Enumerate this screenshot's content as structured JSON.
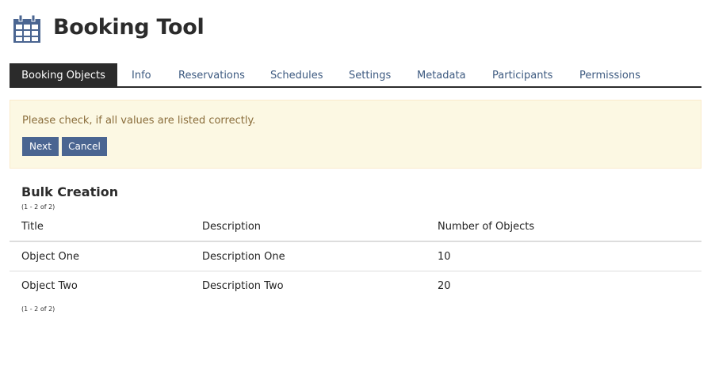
{
  "app": {
    "title": "Booking Tool",
    "icon": "calendar-icon",
    "accent": "#4a6591"
  },
  "tabs": [
    {
      "label": "Booking Objects",
      "active": true
    },
    {
      "label": "Info"
    },
    {
      "label": "Reservations"
    },
    {
      "label": "Schedules"
    },
    {
      "label": "Settings"
    },
    {
      "label": "Metadata"
    },
    {
      "label": "Participants"
    },
    {
      "label": "Permissions"
    }
  ],
  "alert": {
    "message": "Please check, if all values are listed correctly.",
    "next_label": "Next",
    "cancel_label": "Cancel"
  },
  "section": {
    "title": "Bulk Creation",
    "count_top": "(1 - 2 of 2)",
    "count_bottom": "(1 - 2 of 2)"
  },
  "table": {
    "headers": [
      "Title",
      "Description",
      "Number of Objects"
    ],
    "rows": [
      [
        "Object One",
        "Description One",
        "10"
      ],
      [
        "Object Two",
        "Description Two",
        "20"
      ]
    ]
  }
}
